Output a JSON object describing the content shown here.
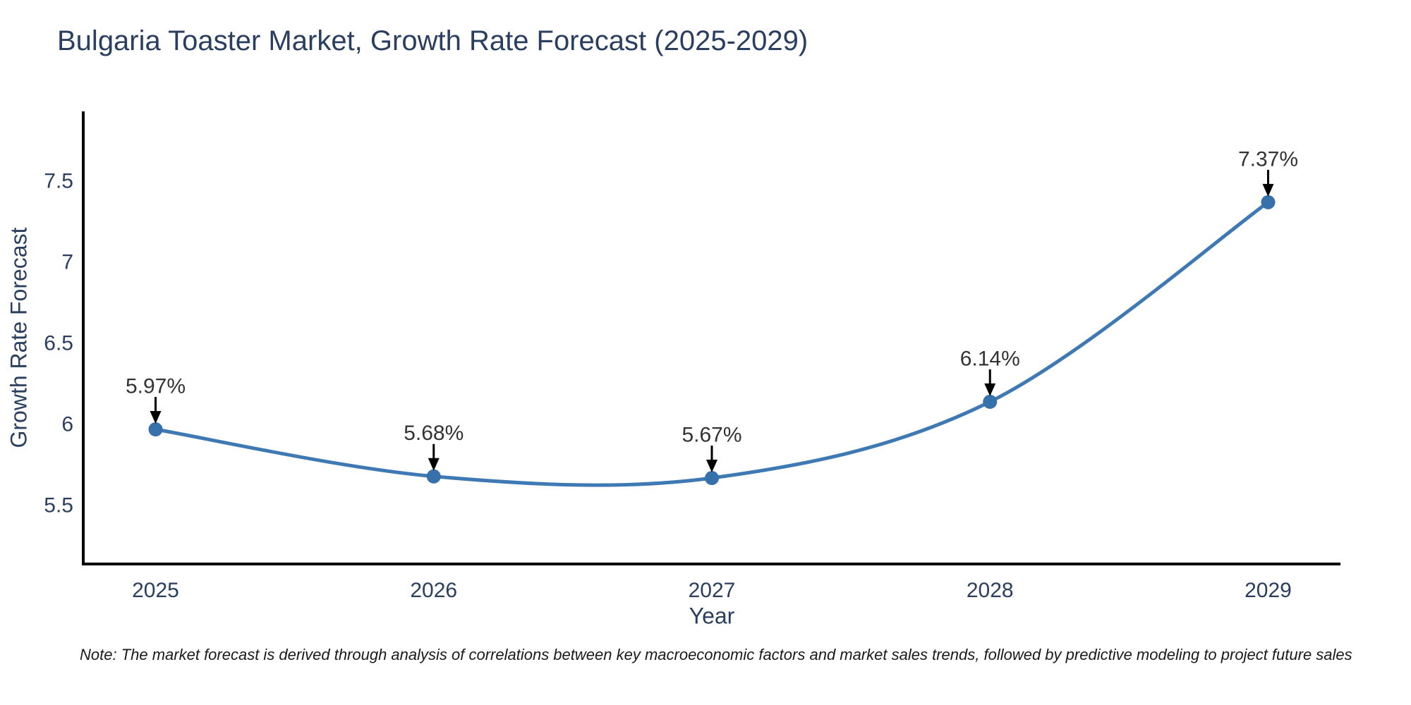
{
  "page": {
    "background": "#ffffff"
  },
  "chart_data": {
    "type": "line",
    "title": "Bulgaria Toaster Market, Growth Rate Forecast (2025-2029)",
    "xlabel": "Year",
    "ylabel": "Growth Rate Forecast",
    "x": [
      2025,
      2026,
      2027,
      2028,
      2029
    ],
    "xtick_labels": [
      "2025",
      "2026",
      "2027",
      "2028",
      "2029"
    ],
    "series": [
      {
        "name": "Growth Rate Forecast",
        "values": [
          5.97,
          5.68,
          5.67,
          6.14,
          7.37
        ]
      }
    ],
    "point_labels": [
      "5.97%",
      "5.68%",
      "5.67%",
      "6.14%",
      "7.37%"
    ],
    "line_shape": "spline",
    "markers": true,
    "grid": false,
    "legend_position": "none",
    "xlim": [
      2024.74,
      2029.26
    ],
    "ylim": [
      5.14,
      7.93
    ],
    "yticks": [
      5.5,
      6,
      6.5,
      7,
      7.5
    ],
    "ytick_labels": [
      "5.5",
      "6",
      "6.5",
      "7",
      "7.5"
    ],
    "colors": {
      "line": "#3e79b4",
      "marker": "#3671ab",
      "axis": "#000000",
      "tick_text": "#2a3f5f",
      "annotation_text": "#333333",
      "annotation_arrow": "#000000"
    }
  },
  "note": {
    "text": "Note: The market forecast is derived through analysis of correlations between key macroeconomic factors and market sales trends, followed by predictive modeling to project future sales"
  }
}
